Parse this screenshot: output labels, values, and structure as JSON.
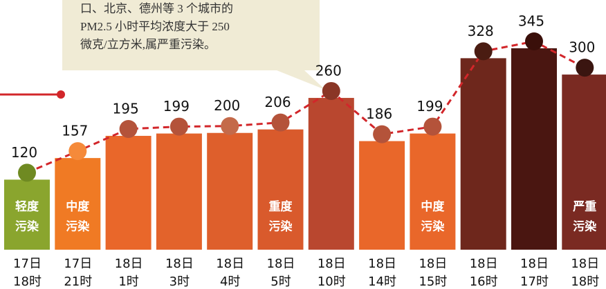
{
  "chart_data": {
    "type": "bar",
    "note": "口、北京、德州等 3 个城市的\nPM2.5 小时平均浓度大于 250\n微克/立方米,属严重污染。",
    "categories": [
      "17日\n18时",
      "17日\n21时",
      "18日\n1时",
      "18日\n3时",
      "18日\n4时",
      "18日\n5时",
      "18日\n10时",
      "18日\n14时",
      "18日\n15时",
      "18日\n16时",
      "18日\n17时",
      "18日\n18时"
    ],
    "values": [
      120,
      157,
      195,
      199,
      200,
      206,
      260,
      186,
      199,
      328,
      345,
      300
    ],
    "level_labels": [
      "轻度\n污染",
      "中度\n污染",
      null,
      null,
      null,
      "重度\n污染",
      null,
      null,
      "中度\n污染",
      null,
      null,
      "严重\n污染"
    ],
    "colors": [
      "#8aa52e",
      "#f07a24",
      "#e9672a",
      "#e3632b",
      "#de5f2c",
      "#d95a2c",
      "#b9472f",
      "#e9672a",
      "#e9672a",
      "#6e271c",
      "#4a1611",
      "#7a2a22"
    ],
    "marker_colors": [
      "#6f8a22",
      "#f58a3a",
      "#b4533a",
      "#b4533a",
      "#c46a4a",
      "#b4533a",
      "#8a3626",
      "#b4533a",
      "#b4533a",
      "#4a1c12",
      "#3a0f0a",
      "#3a1510"
    ],
    "line_color": "#d2262a"
  }
}
